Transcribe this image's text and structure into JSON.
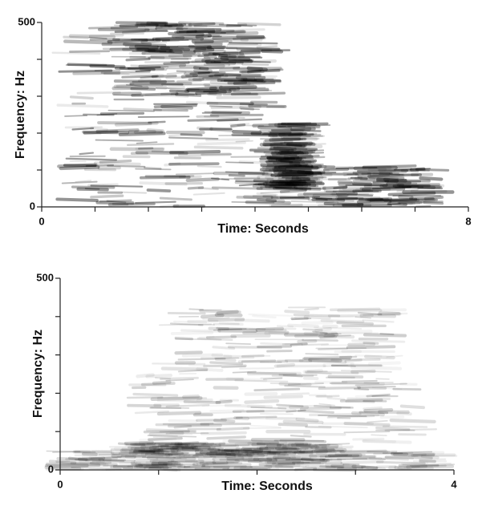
{
  "chart_data": [
    {
      "type": "spectrogram",
      "xlabel": "Time: Seconds",
      "ylabel": "Frequency:  Hz",
      "xlim": [
        0,
        8
      ],
      "xticks": [
        0,
        8
      ],
      "xminorticks": [
        1,
        2,
        3,
        4,
        5,
        6,
        7
      ],
      "ylim": [
        0,
        500
      ],
      "yticks": [
        0,
        500
      ],
      "yminorticks": [
        100,
        200,
        300,
        400
      ]
    },
    {
      "type": "spectrogram",
      "xlabel": "Time: Seconds",
      "ylabel": "Frequency: Hz",
      "xlim": [
        0,
        4
      ],
      "xticks": [
        0,
        4
      ],
      "xminorticks": [
        1,
        2,
        3
      ],
      "ylim": [
        0,
        500
      ],
      "yticks": [
        0,
        500
      ],
      "yminorticks": [
        100,
        200,
        300,
        400
      ]
    }
  ]
}
